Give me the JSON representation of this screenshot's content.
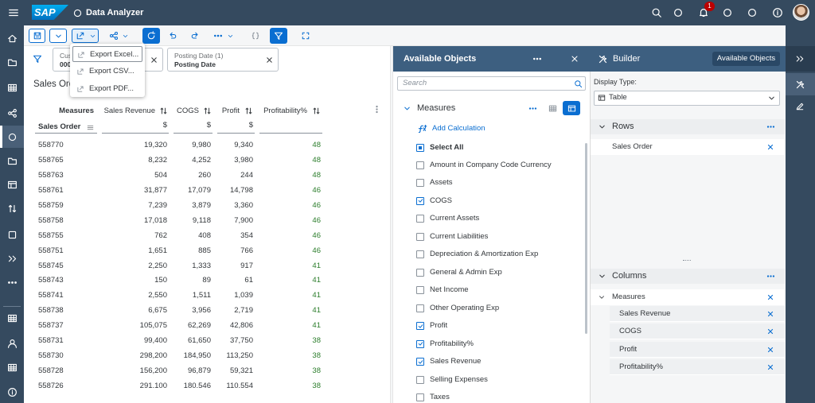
{
  "header": {
    "logo": "SAP",
    "title": "Data Analyzer",
    "notification_count": "1"
  },
  "export_menu": [
    "Export Excel...",
    "Export CSV...",
    "Export PDF..."
  ],
  "filters": [
    {
      "label": "Cust",
      "value": "000"
    },
    {
      "label": "Posting Date (1)",
      "value": "Posting Date"
    }
  ],
  "report": {
    "title": "Sales Order",
    "table": {
      "columns": [
        "Measures",
        "Sales Revenue",
        "COGS",
        "Profit",
        "Profitability%"
      ],
      "row_header": "Sales Order",
      "units": [
        "$",
        "$",
        "$"
      ],
      "rows": [
        [
          "558770",
          "19,320",
          "9,980",
          "9,340",
          "48"
        ],
        [
          "558765",
          "8,232",
          "4,252",
          "3,980",
          "48"
        ],
        [
          "558763",
          "504",
          "260",
          "244",
          "48"
        ],
        [
          "558761",
          "31,877",
          "17,079",
          "14,798",
          "46"
        ],
        [
          "558759",
          "7,239",
          "3,879",
          "3,360",
          "46"
        ],
        [
          "558758",
          "17,018",
          "9,118",
          "7,900",
          "46"
        ],
        [
          "558755",
          "762",
          "408",
          "354",
          "46"
        ],
        [
          "558751",
          "1,651",
          "885",
          "766",
          "46"
        ],
        [
          "558745",
          "2,250",
          "1,333",
          "917",
          "41"
        ],
        [
          "558743",
          "150",
          "89",
          "61",
          "41"
        ],
        [
          "558741",
          "2,550",
          "1,511",
          "1,039",
          "41"
        ],
        [
          "558738",
          "6,675",
          "3,956",
          "2,719",
          "41"
        ],
        [
          "558737",
          "105,075",
          "62,269",
          "42,806",
          "41"
        ],
        [
          "558731",
          "99,400",
          "61,650",
          "37,750",
          "38"
        ],
        [
          "558730",
          "298,200",
          "184,950",
          "113,250",
          "38"
        ],
        [
          "558728",
          "156,200",
          "96,879",
          "59,321",
          "38"
        ],
        [
          "558726",
          "291.100",
          "180.546",
          "110.554",
          "38"
        ]
      ]
    }
  },
  "available_objects": {
    "title": "Available Objects",
    "search_placeholder": "Search",
    "section": "Measures",
    "add_calculation": "Add Calculation",
    "select_all": {
      "label": "Select All",
      "state": "partial"
    },
    "items": [
      {
        "label": "Amount in Company Code Currency",
        "checked": false
      },
      {
        "label": "Assets",
        "checked": false
      },
      {
        "label": "COGS",
        "checked": true
      },
      {
        "label": "Current Assets",
        "checked": false
      },
      {
        "label": "Current Liabilities",
        "checked": false
      },
      {
        "label": "Depreciation & Amortization Exp",
        "checked": false
      },
      {
        "label": "General & Admin Exp",
        "checked": false
      },
      {
        "label": "Net Income",
        "checked": false
      },
      {
        "label": "Other Operating Exp",
        "checked": false
      },
      {
        "label": "Profit",
        "checked": true
      },
      {
        "label": "Profitability%",
        "checked": true
      },
      {
        "label": "Sales Revenue",
        "checked": true
      },
      {
        "label": "Selling Expenses",
        "checked": false
      },
      {
        "label": "Taxes",
        "checked": false
      }
    ]
  },
  "builder": {
    "title": "Builder",
    "button": "Available Objects",
    "display_type_label": "Display Type:",
    "display_type": "Table",
    "rows_title": "Rows",
    "rows": [
      "Sales Order"
    ],
    "columns_title": "Columns",
    "columns_group": "Measures",
    "columns": [
      "Sales Revenue",
      "COGS",
      "Profit",
      "Profitability%"
    ]
  }
}
